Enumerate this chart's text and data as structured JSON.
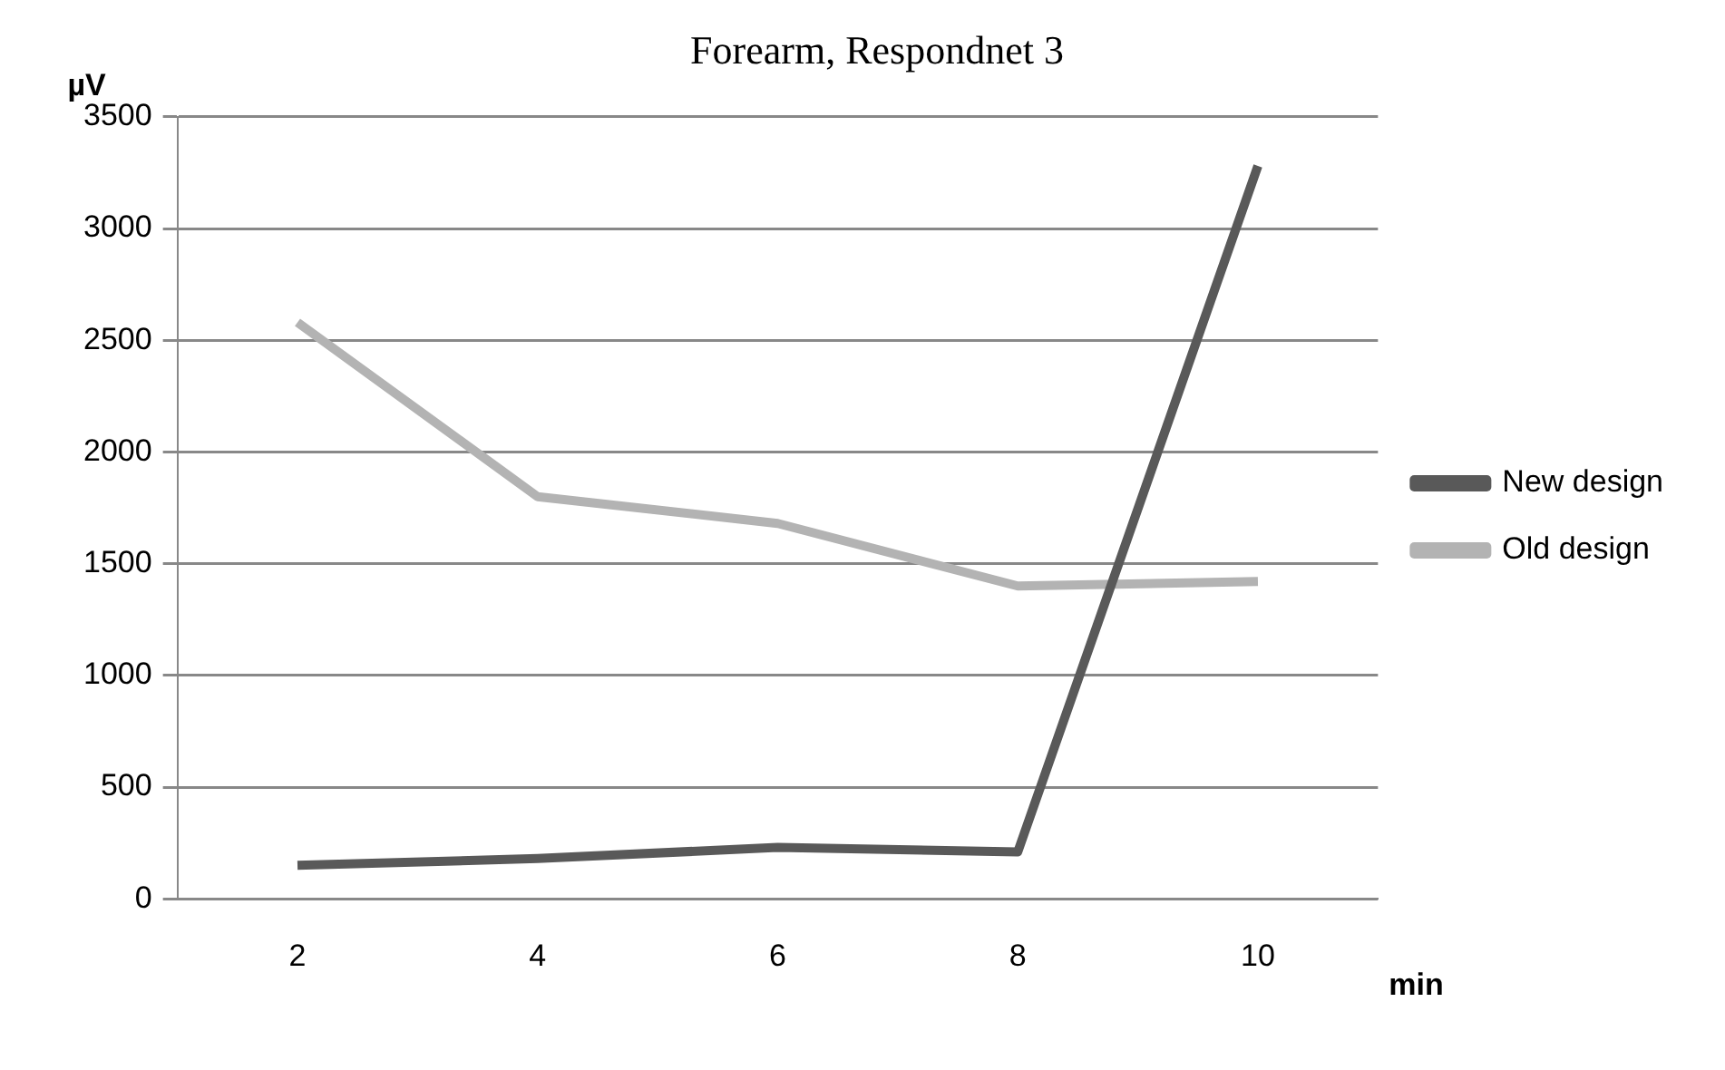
{
  "chart_data": {
    "type": "line",
    "title": "Forearm, Respondnet 3",
    "xlabel": "min",
    "ylabel": "µV",
    "categories": [
      "2",
      "4",
      "6",
      "8",
      "10"
    ],
    "series": [
      {
        "name": "New design",
        "color": "#595959",
        "values": [
          150,
          180,
          230,
          210,
          3280
        ]
      },
      {
        "name": "Old design",
        "color": "#b3b3b3",
        "values": [
          2580,
          1800,
          1680,
          1400,
          1420
        ]
      }
    ],
    "ylim": [
      0,
      3500
    ],
    "yticks": [
      0,
      500,
      1000,
      1500,
      2000,
      2500,
      3000,
      3500
    ],
    "grid": "y",
    "legend": "right",
    "marker": "none",
    "line_style": "solid"
  }
}
